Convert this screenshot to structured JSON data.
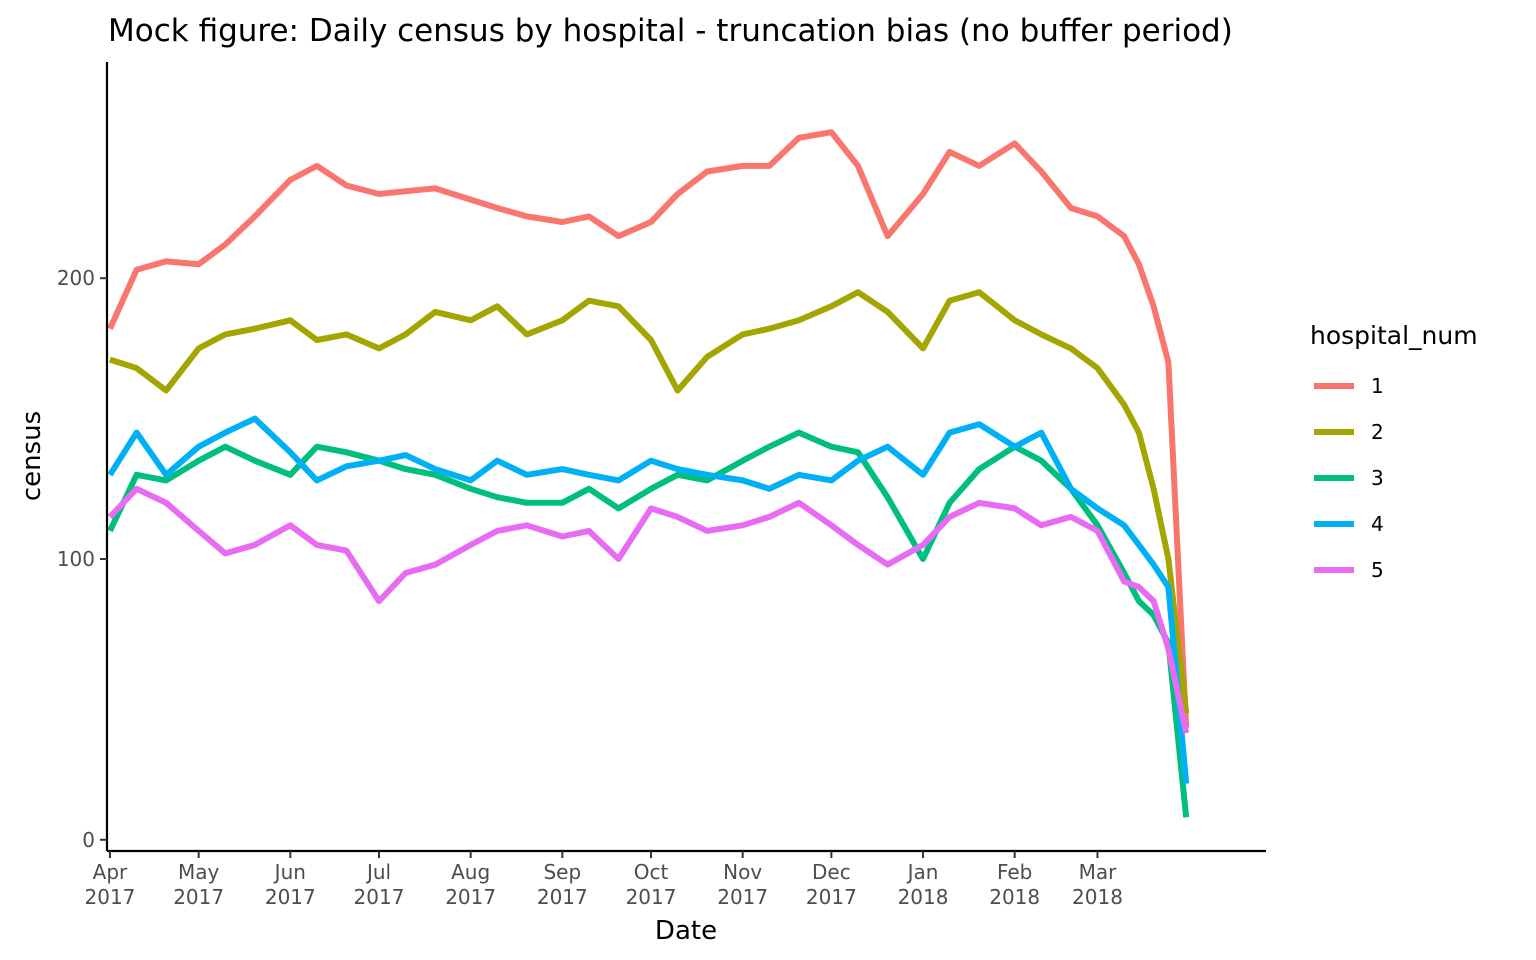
{
  "chart_data": {
    "type": "line",
    "title": "Mock figure: Daily census by hospital - truncation bias (no buffer period)",
    "xlabel": "Date",
    "ylabel": "census",
    "x_range": [
      "2017-03-31",
      "2018-04-27"
    ],
    "ylim": [
      -4,
      277
    ],
    "y_ticks": [
      0,
      100,
      200
    ],
    "x_ticks": [
      {
        "date": "2017-04-01",
        "month": "Apr",
        "year": "2017"
      },
      {
        "date": "2017-05-01",
        "month": "May",
        "year": "2017"
      },
      {
        "date": "2017-06-01",
        "month": "Jun",
        "year": "2017"
      },
      {
        "date": "2017-07-01",
        "month": "Jul",
        "year": "2017"
      },
      {
        "date": "2017-08-01",
        "month": "Aug",
        "year": "2017"
      },
      {
        "date": "2017-09-01",
        "month": "Sep",
        "year": "2017"
      },
      {
        "date": "2017-10-01",
        "month": "Oct",
        "year": "2017"
      },
      {
        "date": "2017-11-01",
        "month": "Nov",
        "year": "2017"
      },
      {
        "date": "2017-12-01",
        "month": "Dec",
        "year": "2017"
      },
      {
        "date": "2018-01-01",
        "month": "Jan",
        "year": "2018"
      },
      {
        "date": "2018-02-01",
        "month": "Feb",
        "year": "2018"
      },
      {
        "date": "2018-03-01",
        "month": "Mar",
        "year": "2018"
      }
    ],
    "grid": false,
    "legend": {
      "title": "hospital_num",
      "placement": "right"
    },
    "series": [
      {
        "name": "1",
        "color": "#F8766D",
        "x": [
          "2017-04-01",
          "2017-04-10",
          "2017-04-20",
          "2017-05-01",
          "2017-05-10",
          "2017-05-20",
          "2017-06-01",
          "2017-06-10",
          "2017-06-20",
          "2017-07-01",
          "2017-07-10",
          "2017-07-20",
          "2017-08-01",
          "2017-08-10",
          "2017-08-20",
          "2017-09-01",
          "2017-09-10",
          "2017-09-20",
          "2017-10-01",
          "2017-10-10",
          "2017-10-20",
          "2017-11-01",
          "2017-11-10",
          "2017-11-20",
          "2017-12-01",
          "2017-12-10",
          "2017-12-20",
          "2018-01-01",
          "2018-01-10",
          "2018-01-20",
          "2018-02-01",
          "2018-02-10",
          "2018-02-20",
          "2018-03-01",
          "2018-03-10",
          "2018-03-15",
          "2018-03-20",
          "2018-03-25",
          "2018-03-31"
        ],
        "y": [
          182,
          203,
          206,
          205,
          212,
          222,
          235,
          240,
          233,
          230,
          231,
          232,
          228,
          225,
          222,
          220,
          222,
          215,
          220,
          230,
          238,
          240,
          240,
          250,
          252,
          240,
          215,
          230,
          245,
          240,
          248,
          238,
          225,
          222,
          215,
          205,
          190,
          170,
          40
        ]
      },
      {
        "name": "2",
        "color": "#A3A500",
        "x": [
          "2017-04-01",
          "2017-04-10",
          "2017-04-20",
          "2017-05-01",
          "2017-05-10",
          "2017-05-20",
          "2017-06-01",
          "2017-06-10",
          "2017-06-20",
          "2017-07-01",
          "2017-07-10",
          "2017-07-20",
          "2017-08-01",
          "2017-08-10",
          "2017-08-20",
          "2017-09-01",
          "2017-09-10",
          "2017-09-20",
          "2017-10-01",
          "2017-10-10",
          "2017-10-20",
          "2017-11-01",
          "2017-11-10",
          "2017-11-20",
          "2017-12-01",
          "2017-12-10",
          "2017-12-20",
          "2018-01-01",
          "2018-01-10",
          "2018-01-20",
          "2018-02-01",
          "2018-02-10",
          "2018-02-20",
          "2018-03-01",
          "2018-03-10",
          "2018-03-15",
          "2018-03-20",
          "2018-03-25",
          "2018-03-31"
        ],
        "y": [
          171,
          168,
          160,
          175,
          180,
          182,
          185,
          178,
          180,
          175,
          180,
          188,
          185,
          190,
          180,
          185,
          192,
          190,
          178,
          160,
          172,
          180,
          182,
          185,
          190,
          195,
          188,
          175,
          192,
          195,
          185,
          180,
          175,
          168,
          155,
          145,
          125,
          100,
          45
        ]
      },
      {
        "name": "3",
        "color": "#00BF7D",
        "x": [
          "2017-04-01",
          "2017-04-10",
          "2017-04-20",
          "2017-05-01",
          "2017-05-10",
          "2017-05-20",
          "2017-06-01",
          "2017-06-10",
          "2017-06-20",
          "2017-07-01",
          "2017-07-10",
          "2017-07-20",
          "2017-08-01",
          "2017-08-10",
          "2017-08-20",
          "2017-09-01",
          "2017-09-10",
          "2017-09-20",
          "2017-10-01",
          "2017-10-10",
          "2017-10-20",
          "2017-11-01",
          "2017-11-10",
          "2017-11-20",
          "2017-12-01",
          "2017-12-10",
          "2017-12-20",
          "2018-01-01",
          "2018-01-10",
          "2018-01-20",
          "2018-02-01",
          "2018-02-10",
          "2018-02-20",
          "2018-03-01",
          "2018-03-10",
          "2018-03-15",
          "2018-03-20",
          "2018-03-25",
          "2018-03-31"
        ],
        "y": [
          110,
          130,
          128,
          135,
          140,
          135,
          130,
          140,
          138,
          135,
          132,
          130,
          125,
          122,
          120,
          120,
          125,
          118,
          125,
          130,
          128,
          135,
          140,
          145,
          140,
          138,
          122,
          100,
          120,
          132,
          140,
          135,
          125,
          112,
          95,
          85,
          80,
          70,
          8
        ]
      },
      {
        "name": "4",
        "color": "#00B0F6",
        "x": [
          "2017-04-01",
          "2017-04-10",
          "2017-04-20",
          "2017-05-01",
          "2017-05-10",
          "2017-05-20",
          "2017-06-01",
          "2017-06-10",
          "2017-06-20",
          "2017-07-01",
          "2017-07-10",
          "2017-07-20",
          "2017-08-01",
          "2017-08-10",
          "2017-08-20",
          "2017-09-01",
          "2017-09-10",
          "2017-09-20",
          "2017-10-01",
          "2017-10-10",
          "2017-10-20",
          "2017-11-01",
          "2017-11-10",
          "2017-11-20",
          "2017-12-01",
          "2017-12-10",
          "2017-12-20",
          "2018-01-01",
          "2018-01-10",
          "2018-01-20",
          "2018-02-01",
          "2018-02-10",
          "2018-02-20",
          "2018-03-01",
          "2018-03-10",
          "2018-03-15",
          "2018-03-20",
          "2018-03-25",
          "2018-03-31"
        ],
        "y": [
          130,
          145,
          130,
          140,
          145,
          150,
          138,
          128,
          133,
          135,
          137,
          132,
          128,
          135,
          130,
          132,
          130,
          128,
          135,
          132,
          130,
          128,
          125,
          130,
          128,
          135,
          140,
          130,
          145,
          148,
          140,
          145,
          125,
          118,
          112,
          105,
          98,
          90,
          20
        ]
      },
      {
        "name": "5",
        "color": "#E76BF3",
        "x": [
          "2017-04-01",
          "2017-04-10",
          "2017-04-20",
          "2017-05-01",
          "2017-05-10",
          "2017-05-20",
          "2017-06-01",
          "2017-06-10",
          "2017-06-20",
          "2017-07-01",
          "2017-07-10",
          "2017-07-20",
          "2017-08-01",
          "2017-08-10",
          "2017-08-20",
          "2017-09-01",
          "2017-09-10",
          "2017-09-20",
          "2017-10-01",
          "2017-10-10",
          "2017-10-20",
          "2017-11-01",
          "2017-11-10",
          "2017-11-20",
          "2017-12-01",
          "2017-12-10",
          "2017-12-20",
          "2018-01-01",
          "2018-01-10",
          "2018-01-20",
          "2018-02-01",
          "2018-02-10",
          "2018-02-20",
          "2018-03-01",
          "2018-03-10",
          "2018-03-15",
          "2018-03-20",
          "2018-03-25",
          "2018-03-31"
        ],
        "y": [
          115,
          125,
          120,
          110,
          102,
          105,
          112,
          105,
          103,
          85,
          95,
          98,
          105,
          110,
          112,
          108,
          110,
          100,
          118,
          115,
          110,
          112,
          115,
          120,
          112,
          105,
          98,
          105,
          115,
          120,
          118,
          112,
          115,
          110,
          92,
          90,
          85,
          68,
          38
        ]
      }
    ]
  }
}
